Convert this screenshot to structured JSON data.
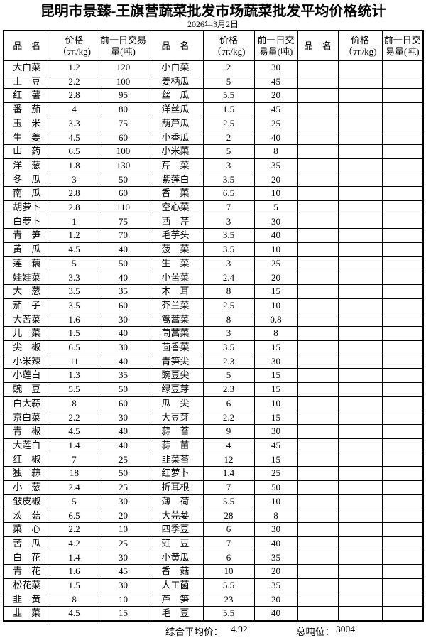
{
  "title": "昆明市景臻-王旗营蔬菜批发市场蔬菜批发平均价格统计",
  "date": "2026年3月2日",
  "table": {
    "column_headers": {
      "name": "品　名",
      "price": "价格（元/kg)",
      "volume": "前一日交易量(吨)"
    },
    "row_count": 40,
    "groups": [
      {
        "rows": [
          [
            "大白菜",
            "1.2",
            "120"
          ],
          [
            "土　豆",
            "2.2",
            "100"
          ],
          [
            "红　薯",
            "2.8",
            "95"
          ],
          [
            "番　茄",
            "4",
            "80"
          ],
          [
            "玉　米",
            "3.3",
            "75"
          ],
          [
            "生　姜",
            "4.5",
            "60"
          ],
          [
            "山　药",
            "6.5",
            "100"
          ],
          [
            "洋　葱",
            "1.8",
            "130"
          ],
          [
            "冬　瓜",
            "3",
            "50"
          ],
          [
            "南　瓜",
            "2.8",
            "60"
          ],
          [
            "胡萝卜",
            "2.8",
            "110"
          ],
          [
            "白萝卜",
            "1",
            "75"
          ],
          [
            "青　笋",
            "1.2",
            "70"
          ],
          [
            "黄　瓜",
            "4.5",
            "40"
          ],
          [
            "莲　藕",
            "5",
            "50"
          ],
          [
            "娃娃菜",
            "3.3",
            "40"
          ],
          [
            "大　葱",
            "3.5",
            "35"
          ],
          [
            "茄　子",
            "3.5",
            "60"
          ],
          [
            "大苦菜",
            "1.6",
            "30"
          ],
          [
            "儿　菜",
            "1.5",
            "40"
          ],
          [
            "尖　椒",
            "6.5",
            "30"
          ],
          [
            "小米辣",
            "11",
            "40"
          ],
          [
            "小莲白",
            "1.3",
            "35"
          ],
          [
            "豌　豆",
            "5.5",
            "50"
          ],
          [
            "白大蒜",
            "8",
            "60"
          ],
          [
            "京白菜",
            "2.2",
            "30"
          ],
          [
            "青　椒",
            "4.5",
            "40"
          ],
          [
            "大莲白",
            "1.4",
            "40"
          ],
          [
            "红　椒",
            "7",
            "25"
          ],
          [
            "独　蒜",
            "18",
            "50"
          ],
          [
            "小　葱",
            "2.4",
            "25"
          ],
          [
            "皱皮椒",
            "5",
            "30"
          ],
          [
            "茨　菇",
            "6.5",
            "20"
          ],
          [
            "菜　心",
            "2.2",
            "10"
          ],
          [
            "苦　瓜",
            "4.2",
            "25"
          ],
          [
            "白　花",
            "1.4",
            "30"
          ],
          [
            "青　花",
            "1.6",
            "45"
          ],
          [
            "松花菜",
            "1.5",
            "30"
          ],
          [
            "韭　黄",
            "8",
            "10"
          ],
          [
            "韭　菜",
            "4.5",
            "15"
          ]
        ]
      },
      {
        "rows": [
          [
            "小白菜",
            "2",
            "30"
          ],
          [
            "姜柄瓜",
            "5",
            "45"
          ],
          [
            "丝　瓜",
            "5.5",
            "20"
          ],
          [
            "洋丝瓜",
            "1.5",
            "45"
          ],
          [
            "葫芦瓜",
            "2.5",
            "25"
          ],
          [
            "小香瓜",
            "2",
            "40"
          ],
          [
            "小米菜",
            "5",
            "8"
          ],
          [
            "芹　菜",
            "3",
            "35"
          ],
          [
            "紫莲白",
            "3.5",
            "20"
          ],
          [
            "香　菜",
            "6.5",
            "10"
          ],
          [
            "空心菜",
            "7",
            "5"
          ],
          [
            "西　芹",
            "3",
            "30"
          ],
          [
            "毛芋头",
            "3.5",
            "40"
          ],
          [
            "菠　菜",
            "3.5",
            "10"
          ],
          [
            "生　菜",
            "3",
            "25"
          ],
          [
            "小苦菜",
            "2.4",
            "20"
          ],
          [
            "木　耳",
            "8",
            "15"
          ],
          [
            "芥兰菜",
            "2.5",
            "10"
          ],
          [
            "篱蒿菜",
            "8",
            "0.8"
          ],
          [
            "茼蒿菜",
            "3",
            "8"
          ],
          [
            "茴香菜",
            "3.5",
            "15"
          ],
          [
            "青笋尖",
            "2.3",
            "30"
          ],
          [
            "豌豆尖",
            "5",
            "15"
          ],
          [
            "绿豆芽",
            "2.3",
            "15"
          ],
          [
            "瓜　尖",
            "6",
            "10"
          ],
          [
            "大豆芽",
            "2.2",
            "15"
          ],
          [
            "蒜　苔",
            "9",
            "30"
          ],
          [
            "蒜　苗",
            "4",
            "45"
          ],
          [
            "韭菜苔",
            "12",
            "15"
          ],
          [
            "红萝卜",
            "1.4",
            "25"
          ],
          [
            "折耳根",
            "7",
            "50"
          ],
          [
            "薄　荷",
            "5.5",
            "10"
          ],
          [
            "大芫荽",
            "28",
            "8"
          ],
          [
            "四季豆",
            "6",
            "30"
          ],
          [
            "豇　豆",
            "7",
            "40"
          ],
          [
            "小黄瓜",
            "6",
            "35"
          ],
          [
            "香　菇",
            "10",
            "20"
          ],
          [
            "人工菌",
            "5.5",
            "35"
          ],
          [
            "芦　笋",
            "23",
            "20"
          ],
          [
            "毛　豆",
            "5.5",
            "40"
          ]
        ]
      },
      {
        "rows": []
      }
    ]
  },
  "footer": {
    "avg_label": "综合平均价：",
    "avg_value": "4.92",
    "tonnage_label": "总吨位：",
    "tonnage_value": "3004"
  }
}
